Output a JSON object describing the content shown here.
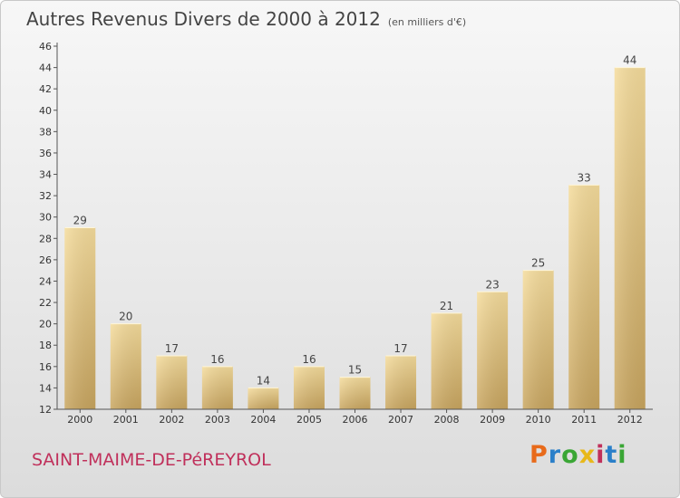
{
  "header": {
    "title": "Autres Revenus Divers de 2000 à 2012",
    "unit_note": "(en milliers d'€)"
  },
  "footer": {
    "place": "SAINT-MAIME-DE-PéREYROL",
    "brand": {
      "letters": [
        "P",
        "r",
        "o",
        "x",
        "i",
        "t",
        "i"
      ],
      "colors": [
        "#e86a1a",
        "#2a7fc9",
        "#3aa635",
        "#e8b81a",
        "#c0305b",
        "#2a7fc9",
        "#3aa635"
      ]
    }
  },
  "chart_data": {
    "type": "bar",
    "title": "Autres Revenus Divers de 2000 à 2012",
    "xlabel": "",
    "ylabel": "",
    "categories": [
      "2000",
      "2001",
      "2002",
      "2003",
      "2004",
      "2005",
      "2006",
      "2007",
      "2008",
      "2009",
      "2010",
      "2011",
      "2012"
    ],
    "values": [
      29,
      20,
      17,
      16,
      14,
      16,
      15,
      17,
      21,
      23,
      25,
      33,
      44
    ],
    "ylim": [
      12,
      46
    ],
    "yticks": [
      12,
      14,
      16,
      18,
      20,
      22,
      24,
      26,
      28,
      30,
      32,
      34,
      36,
      38,
      40,
      42,
      44,
      46
    ],
    "grid": false,
    "legend": "none",
    "colors": {
      "bar_light": "#f5dc9c",
      "bar_dark": "#c8a55f",
      "axis": "#555555"
    }
  }
}
